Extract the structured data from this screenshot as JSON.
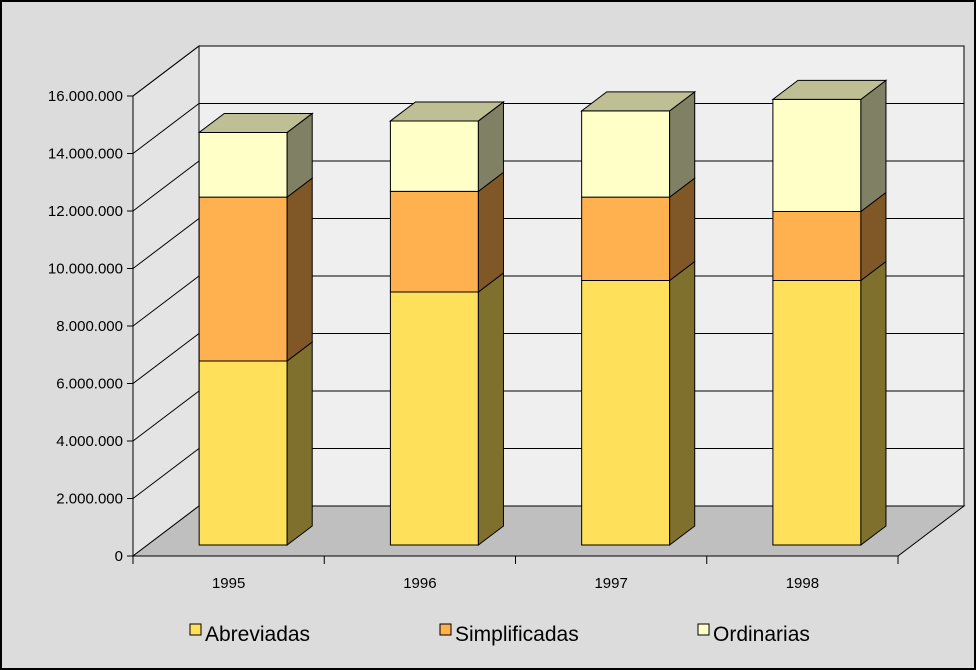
{
  "chart_data": {
    "type": "bar",
    "stacked": true,
    "three_d": true,
    "categories": [
      "1995",
      "1996",
      "1997",
      "1998"
    ],
    "series": [
      {
        "name": "Abreviadas",
        "color": "#FFE05A",
        "values": [
          6400000,
          8800000,
          9200000,
          9200000
        ]
      },
      {
        "name": "Simplificadas",
        "color": "#FFB04F",
        "values": [
          5700000,
          3500000,
          2900000,
          2400000
        ]
      },
      {
        "name": "Ordinarias",
        "color": "#FFFFC8",
        "values": [
          2250000,
          2450000,
          3000000,
          3900000
        ]
      }
    ],
    "yticks": [
      "0",
      "2.000.000",
      "4.000.000",
      "6.000.000",
      "8.000.000",
      "10.000.000",
      "12.000.000",
      "14.000.000",
      "16.000.000"
    ],
    "ylim": [
      0,
      16000000
    ],
    "grid": true,
    "legend_position": "bottom",
    "colors": {
      "background": "#DCDCDC",
      "back_wall": "#EFEFEF",
      "side_wall": "#E4E4E4",
      "floor": "#BFBFBF"
    }
  }
}
